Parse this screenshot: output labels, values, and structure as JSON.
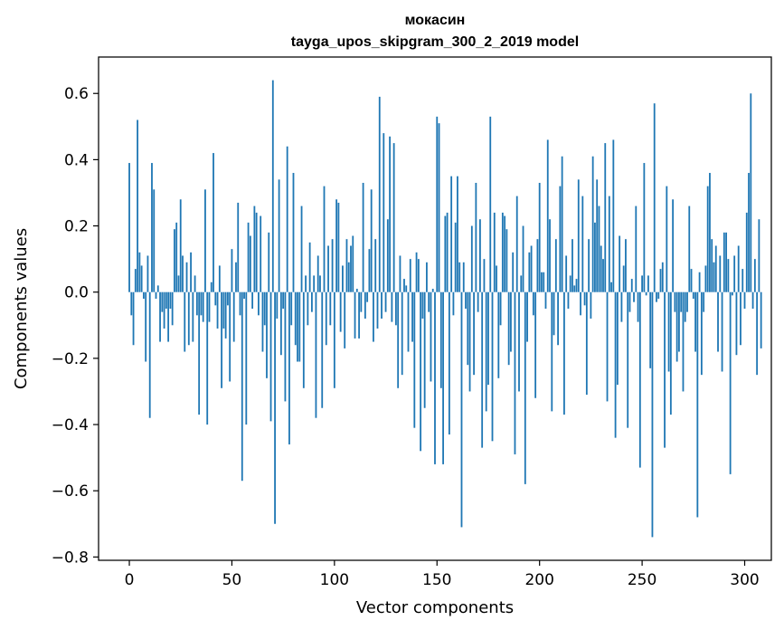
{
  "chart_data": {
    "type": "bar",
    "title": "мокасин",
    "subtitle": "tayga_upos_skipgram_300_2_2019 model",
    "xlabel": "Vector components",
    "ylabel": "Components values",
    "xlim": [
      -15,
      313
    ],
    "ylim": [
      -0.81,
      0.71
    ],
    "xticks": [
      0,
      50,
      100,
      150,
      200,
      250,
      300
    ],
    "xtick_labels": [
      "0",
      "50",
      "100",
      "150",
      "200",
      "250",
      "300"
    ],
    "yticks": [
      -0.8,
      -0.6,
      -0.4,
      -0.2,
      0.0,
      0.2,
      0.4,
      0.6
    ],
    "ytick_labels": [
      "−0.8",
      "−0.6",
      "−0.4",
      "−0.2",
      "0.0",
      "0.2",
      "0.4",
      "0.6"
    ],
    "grid": false,
    "bar_color": "#1f77b4",
    "values": [
      0.39,
      -0.07,
      -0.16,
      0.07,
      0.52,
      0.12,
      0.08,
      -0.02,
      -0.21,
      0.11,
      -0.38,
      0.39,
      0.31,
      -0.02,
      0.02,
      -0.15,
      -0.06,
      -0.11,
      -0.05,
      -0.15,
      -0.05,
      -0.1,
      0.19,
      0.21,
      0.05,
      0.28,
      0.11,
      -0.18,
      0.09,
      -0.16,
      0.12,
      -0.15,
      0.05,
      -0.07,
      -0.37,
      -0.07,
      -0.09,
      0.31,
      -0.4,
      -0.09,
      0.03,
      0.42,
      -0.04,
      -0.11,
      0.08,
      -0.29,
      -0.11,
      -0.14,
      -0.04,
      -0.27,
      0.13,
      -0.15,
      0.09,
      0.27,
      -0.07,
      -0.57,
      -0.02,
      -0.4,
      0.21,
      0.17,
      -0.05,
      0.26,
      0.24,
      -0.07,
      0.23,
      -0.18,
      -0.1,
      -0.26,
      0.18,
      -0.39,
      0.64,
      -0.7,
      -0.08,
      0.34,
      -0.19,
      -0.05,
      -0.33,
      0.44,
      -0.46,
      -0.1,
      0.36,
      -0.16,
      -0.21,
      -0.21,
      0.26,
      -0.29,
      0.05,
      -0.1,
      0.15,
      -0.06,
      0.05,
      -0.38,
      0.11,
      0.05,
      -0.35,
      0.32,
      -0.16,
      0.14,
      -0.1,
      0.16,
      -0.29,
      0.28,
      0.27,
      -0.12,
      0.08,
      -0.17,
      0.16,
      0.09,
      0.14,
      0.17,
      -0.14,
      0.01,
      -0.14,
      -0.06,
      0.33,
      -0.08,
      -0.03,
      0.13,
      0.31,
      -0.15,
      0.16,
      -0.11,
      0.59,
      -0.08,
      0.48,
      -0.06,
      0.22,
      0.47,
      -0.09,
      0.45,
      -0.1,
      -0.29,
      0.11,
      -0.25,
      0.04,
      0.02,
      -0.18,
      0.1,
      -0.15,
      -0.41,
      0.12,
      0.1,
      -0.48,
      -0.08,
      -0.35,
      0.09,
      -0.06,
      -0.27,
      0.01,
      -0.52,
      0.53,
      0.51,
      -0.29,
      -0.52,
      0.23,
      0.24,
      -0.43,
      0.35,
      -0.07,
      0.21,
      0.35,
      0.09,
      -0.71,
      0.09,
      -0.05,
      -0.22,
      -0.3,
      0.2,
      -0.25,
      0.33,
      -0.06,
      0.22,
      -0.47,
      0.1,
      -0.36,
      -0.28,
      0.53,
      -0.45,
      0.24,
      0.08,
      -0.26,
      -0.1,
      0.24,
      0.23,
      0.19,
      -0.22,
      -0.18,
      0.12,
      -0.49,
      0.29,
      -0.3,
      0.05,
      0.2,
      -0.58,
      -0.15,
      0.12,
      0.14,
      -0.07,
      -0.32,
      0.16,
      0.33,
      0.06,
      0.06,
      -0.05,
      0.46,
      0.22,
      -0.36,
      -0.13,
      0.16,
      -0.16,
      0.32,
      0.41,
      -0.37,
      0.11,
      -0.05,
      0.05,
      0.16,
      0.02,
      0.04,
      0.34,
      -0.07,
      0.29,
      -0.04,
      -0.31,
      0.16,
      -0.08,
      0.41,
      0.21,
      0.34,
      0.26,
      0.14,
      0.1,
      0.45,
      -0.33,
      0.29,
      0.03,
      0.46,
      -0.44,
      -0.28,
      0.17,
      -0.09,
      0.08,
      0.16,
      -0.41,
      -0.06,
      0.04,
      -0.03,
      0.26,
      -0.09,
      -0.53,
      0.05,
      0.39,
      -0.01,
      0.05,
      -0.23,
      -0.74,
      0.57,
      -0.03,
      -0.02,
      0.07,
      0.09,
      -0.47,
      0.32,
      -0.24,
      -0.37,
      0.28,
      -0.06,
      -0.21,
      -0.18,
      -0.06,
      -0.3,
      -0.09,
      -0.06,
      0.26,
      0.07,
      -0.02,
      -0.18,
      -0.68,
      0.06,
      -0.25,
      -0.06,
      0.08,
      0.32,
      0.36,
      0.16,
      0.09,
      0.14,
      -0.18,
      0.11,
      -0.24,
      0.18,
      0.18,
      0.1,
      -0.55,
      -0.01,
      0.11,
      -0.19,
      0.14,
      -0.16,
      0.07,
      -0.05,
      0.24,
      0.36,
      0.6,
      -0.05,
      0.1,
      -0.25,
      0.22,
      -0.17
    ]
  }
}
